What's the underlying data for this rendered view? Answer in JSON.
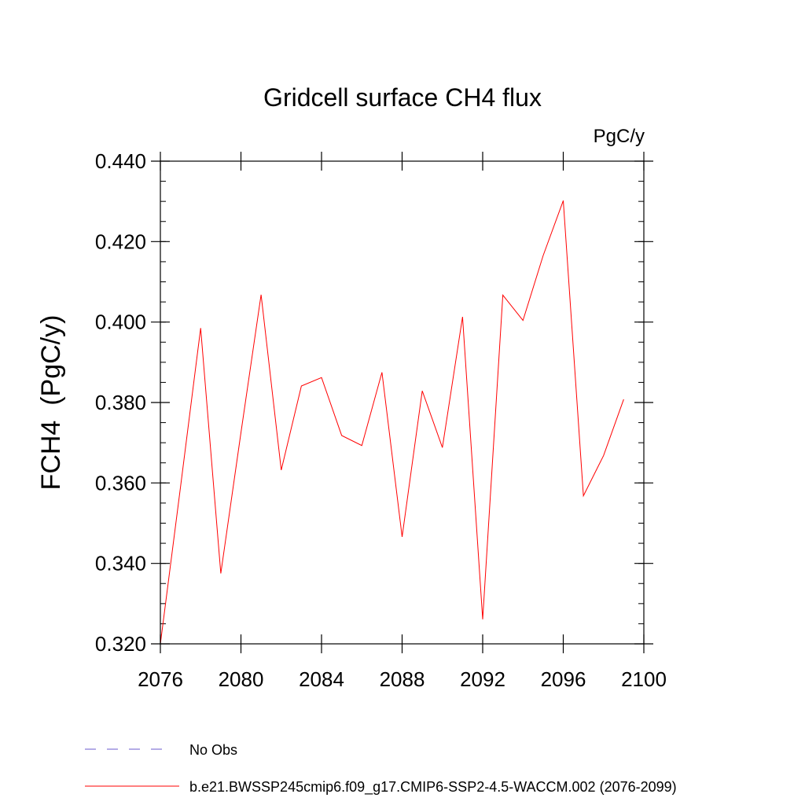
{
  "chart_data": {
    "type": "line",
    "title": "Gridcell surface CH4 flux",
    "units": "PgC/y",
    "ylabel": "FCH4  (PgC/y)",
    "xlabel": "",
    "xlim": [
      2076,
      2100
    ],
    "ylim": [
      0.32,
      0.44
    ],
    "x_ticks": [
      2076,
      2080,
      2084,
      2088,
      2092,
      2096,
      2100
    ],
    "x_tick_labels": [
      "2076",
      "2080",
      "2084",
      "2088",
      "2092",
      "2096",
      "2100"
    ],
    "y_ticks": [
      0.32,
      0.34,
      0.36,
      0.38,
      0.4,
      0.42,
      0.44
    ],
    "y_tick_labels": [
      "0.320",
      "0.340",
      "0.360",
      "0.380",
      "0.400",
      "0.420",
      "0.440"
    ],
    "series": [
      {
        "name": "b.e21.BWSSP245cmip6.f09_g17.CMIP6-SSP2-4.5-WACCM.002 (2076-2099)",
        "color": "#ff0000",
        "x": [
          2076,
          2077,
          2078,
          2079,
          2080,
          2081,
          2082,
          2083,
          2084,
          2085,
          2086,
          2087,
          2088,
          2089,
          2090,
          2091,
          2092,
          2093,
          2094,
          2095,
          2096,
          2097,
          2098,
          2099
        ],
        "values": [
          0.32,
          0.359,
          0.3985,
          0.3375,
          0.3725,
          0.4068,
          0.3632,
          0.3841,
          0.3862,
          0.3718,
          0.3693,
          0.3875,
          0.3466,
          0.3829,
          0.3688,
          0.4013,
          0.3261,
          0.4067,
          0.4004,
          0.4165,
          0.4302,
          0.3568,
          0.3668,
          0.3808
        ]
      }
    ],
    "legend": [
      {
        "label": "No Obs",
        "color": "#6a5acd",
        "style": "dashed"
      },
      {
        "label": "b.e21.BWSSP245cmip6.f09_g17.CMIP6-SSP2-4.5-WACCM.002 (2076-2099)",
        "color": "#ff0000",
        "style": "solid"
      }
    ]
  }
}
